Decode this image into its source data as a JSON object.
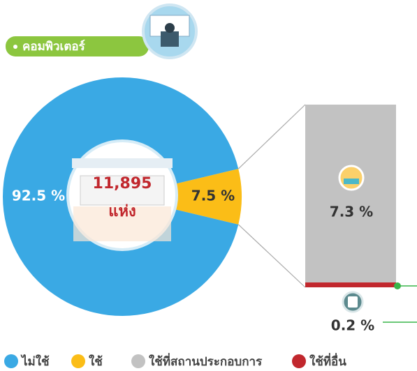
{
  "chart_data": [
    {
      "type": "pie",
      "title": "คอมพิวเตอร์",
      "categories": [
        "ไม่ใช้",
        "ใช้"
      ],
      "values": [
        92.5,
        7.5
      ],
      "value_labels": [
        "92.5 %",
        "7.5 %"
      ],
      "colors": [
        "#3aa9e4",
        "#fbbd17"
      ],
      "annotations": [
        "11,895",
        "แห่ง"
      ]
    },
    {
      "type": "stacked-bar",
      "series": [
        {
          "name": "ใช้ที่สถานประกอบการ",
          "color": "#c2c2c2",
          "values": [
            7.3
          ],
          "value_labels": [
            "7.3 %"
          ]
        },
        {
          "name": "ใช้ที่อื่น",
          "color": "#c1272d",
          "values": [
            0.2
          ],
          "value_labels": [
            "0.2 %"
          ]
        }
      ]
    }
  ]
}
